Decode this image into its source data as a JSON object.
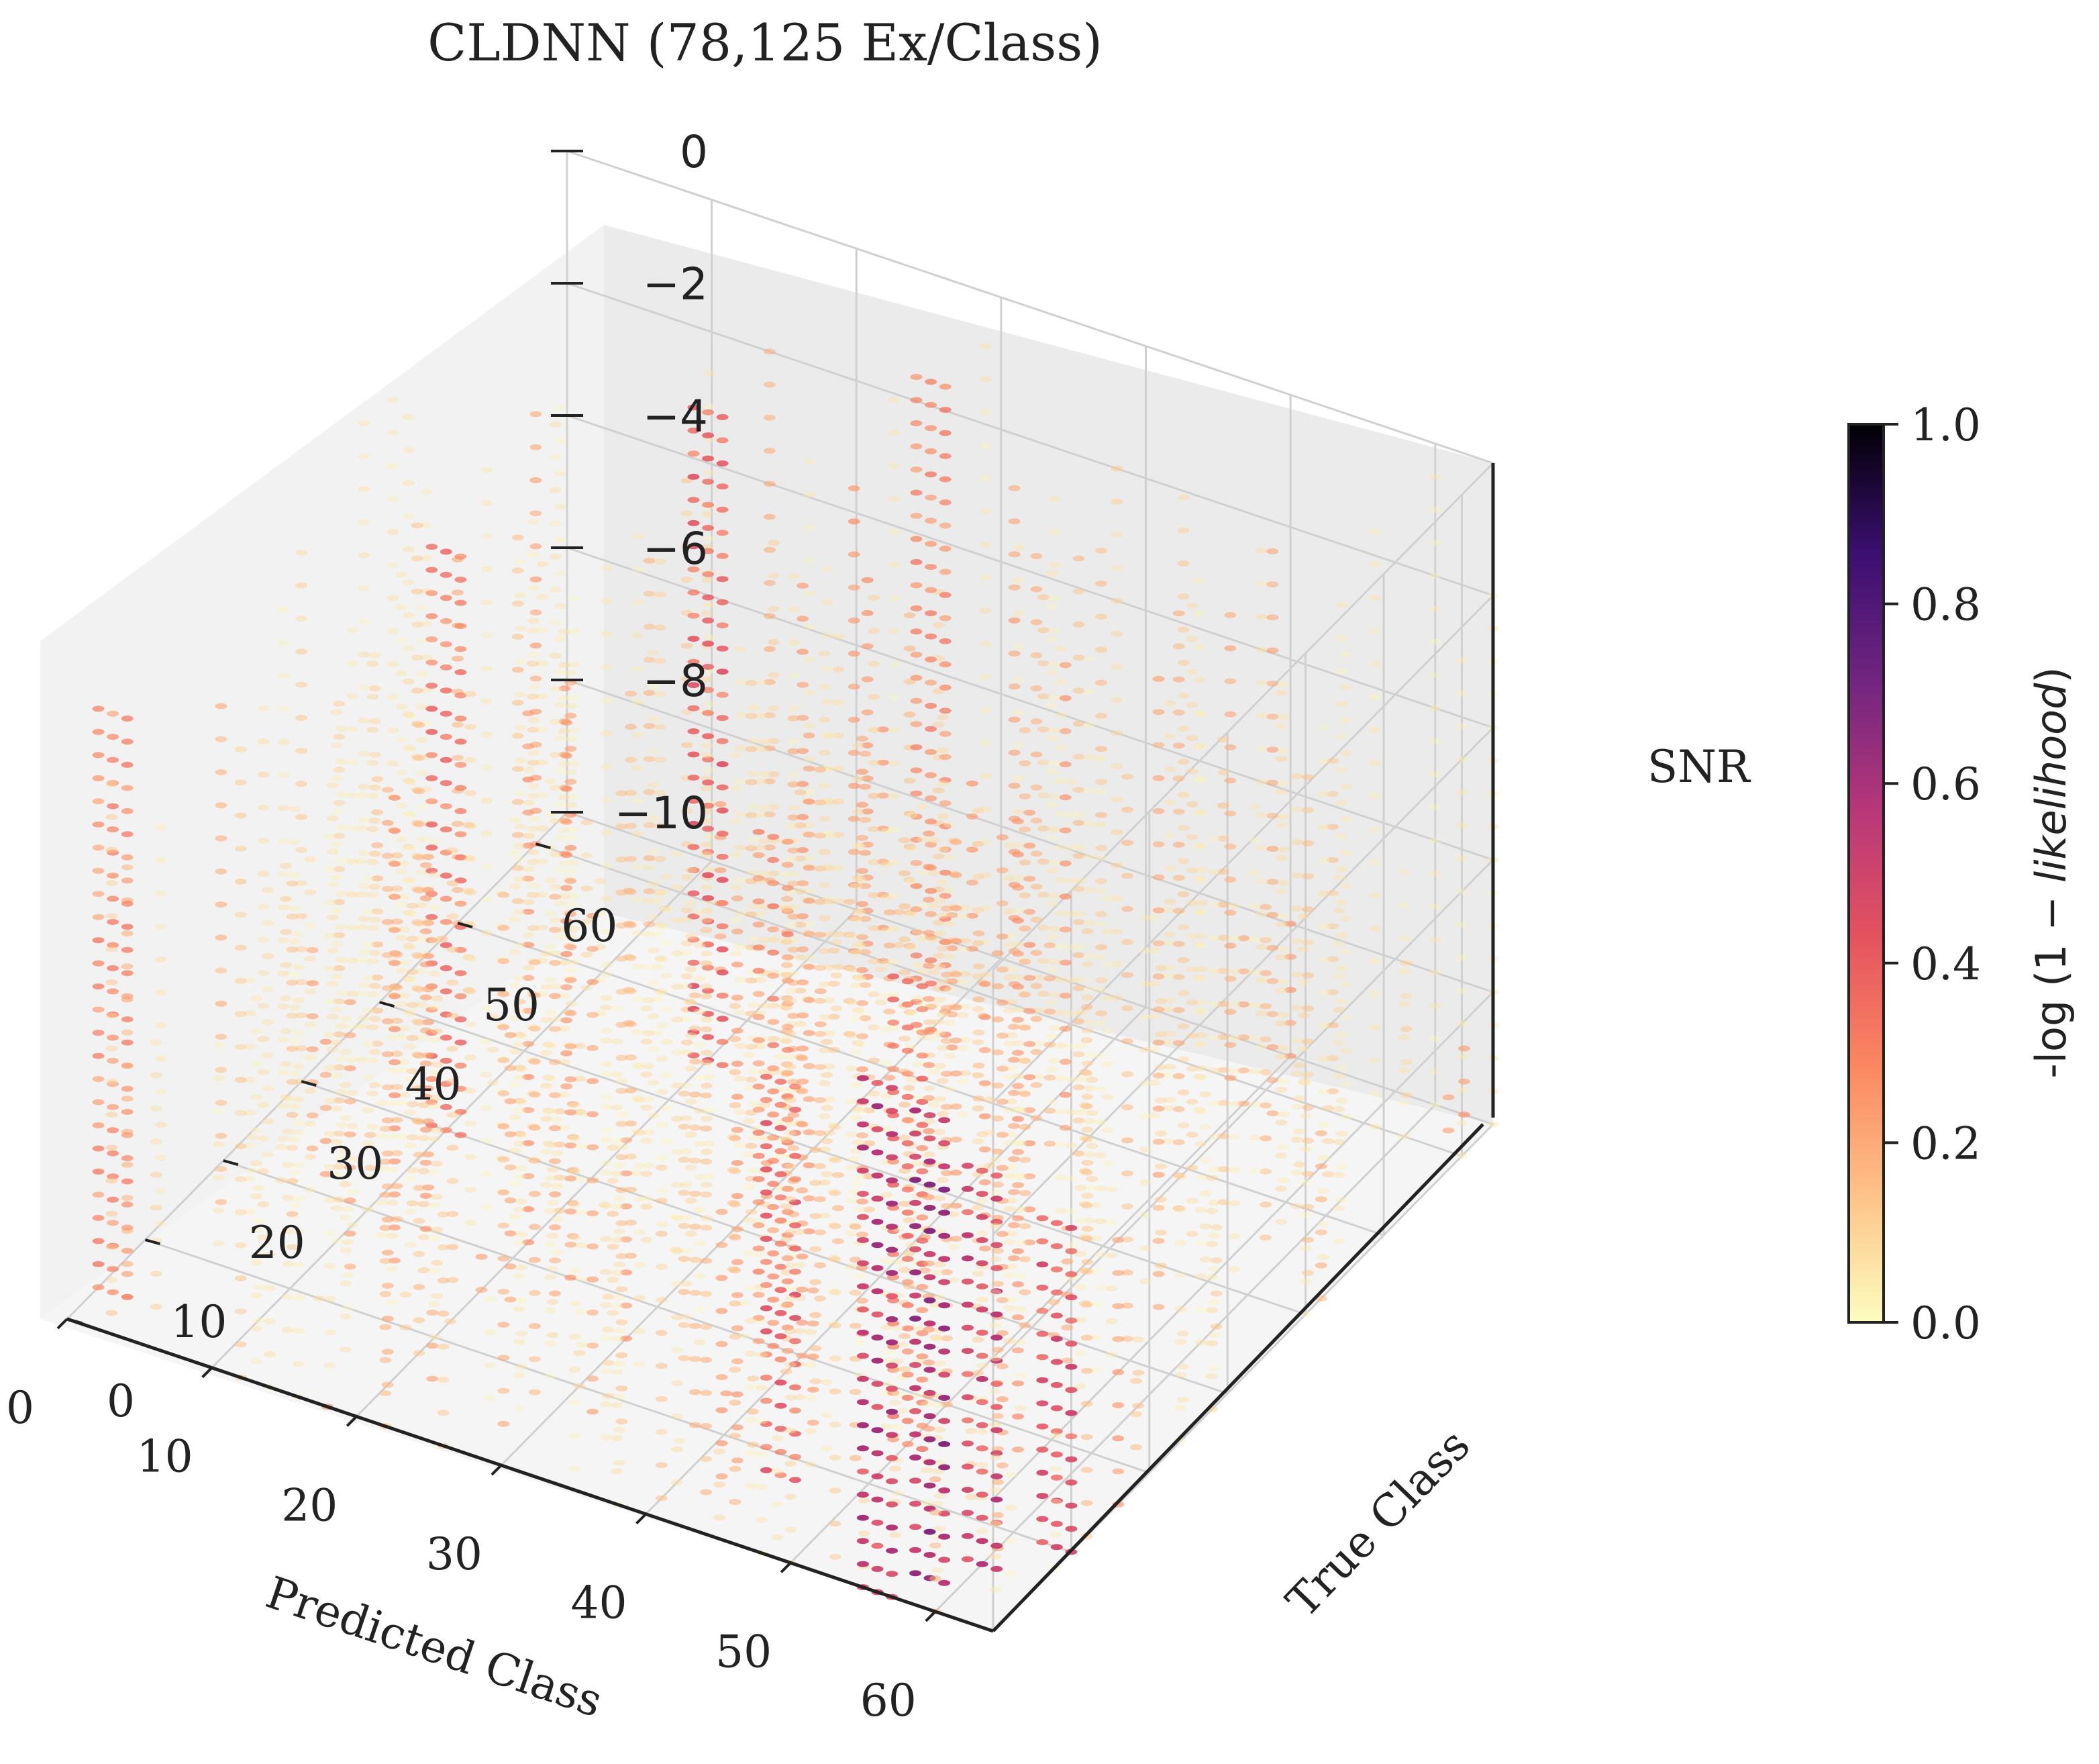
{
  "chart_data": {
    "type": "scatter3d",
    "title": "CLDNN (78,125 Ex/Class)",
    "xlabel": "Predicted Class",
    "ylabel": "True Class",
    "zlabel": "SNR",
    "x_ticks": [
      "0",
      "10",
      "20",
      "30",
      "40",
      "50",
      "60"
    ],
    "y_ticks": [
      "0",
      "10",
      "20",
      "30",
      "40",
      "50",
      "60"
    ],
    "z_ticks": [
      "0",
      "−2",
      "−4",
      "−6",
      "−8",
      "−10"
    ],
    "xlim": [
      0,
      64
    ],
    "ylim": [
      0,
      64
    ],
    "zlim": [
      -10,
      0
    ],
    "colorbar": {
      "label": "-log (1 − likelihood)",
      "label_plain": "-log (1 − ",
      "label_italic": "likelihood",
      "label_close": ")",
      "ticks": [
        "0.0",
        "0.2",
        "0.4",
        "0.6",
        "0.8",
        "1.0"
      ],
      "range": [
        0.0,
        1.0
      ],
      "colormap": "magma_r",
      "stops": [
        "#fcfdbf",
        "#fec287",
        "#fb8761",
        "#e5525f",
        "#b73779",
        "#712580",
        "#3b0f70",
        "#000004"
      ]
    },
    "background_points": "dense grid over predicted class 0-64, true class 0-64, SNR -10 to 0; mostly 0.0-0.2",
    "highlight_columns": [
      {
        "true_class": 0,
        "pred_class": 56,
        "snr_top": -2,
        "value": 0.55
      },
      {
        "true_class": 3,
        "pred_class": 58,
        "snr_top": -3,
        "value": 0.6
      },
      {
        "true_class": 6,
        "pred_class": 60,
        "snr_top": -4,
        "value": 0.5
      },
      {
        "true_class": 10,
        "pred_class": 63,
        "snr_top": -5,
        "value": 0.45
      },
      {
        "true_class": 8,
        "pred_class": 45,
        "snr_top": -4,
        "value": 0.4
      },
      {
        "true_class": 15,
        "pred_class": 50,
        "snr_top": -3,
        "value": 0.35
      },
      {
        "true_class": 4,
        "pred_class": 1,
        "snr_top": -1,
        "value": 0.3
      },
      {
        "true_class": 30,
        "pred_class": 10,
        "snr_top": -1,
        "value": 0.35
      },
      {
        "true_class": 45,
        "pred_class": 20,
        "snr_top": 0,
        "value": 0.4
      },
      {
        "true_class": 55,
        "pred_class": 30,
        "snr_top": 0,
        "value": 0.3
      },
      {
        "true_class": 20,
        "pred_class": 38,
        "snr_top": -2,
        "value": 0.3
      }
    ]
  }
}
